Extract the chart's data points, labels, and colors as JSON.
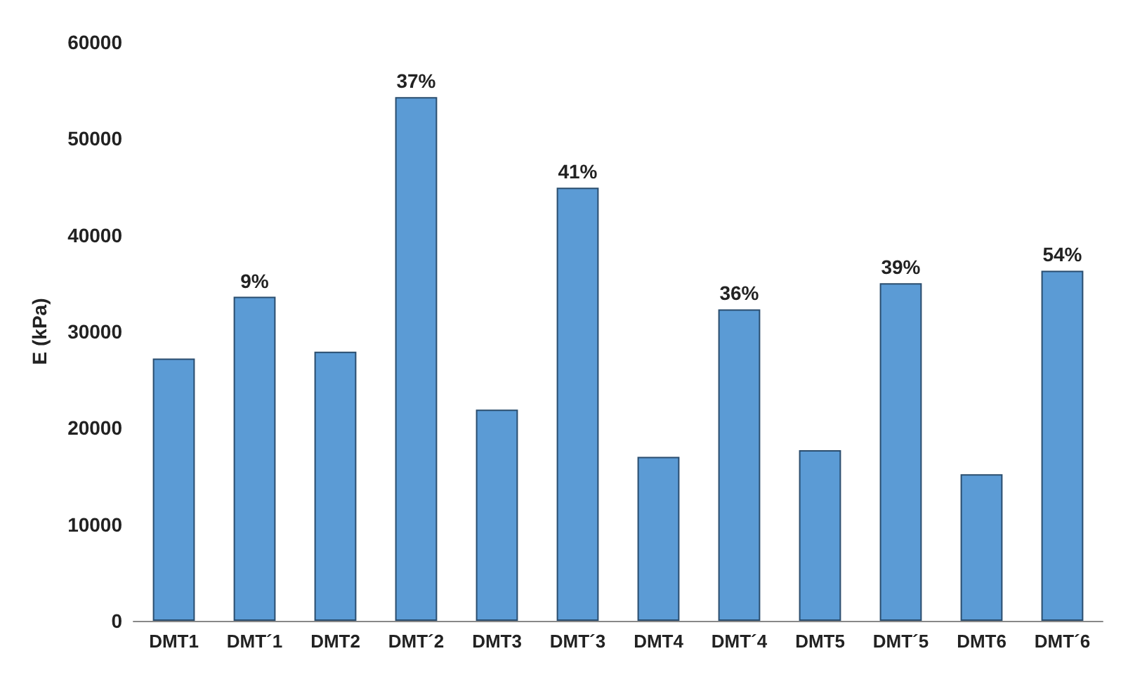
{
  "chart_data": {
    "type": "bar",
    "ylabel": "E (kPa)",
    "categories": [
      "DMT1",
      "DMT´1",
      "DMT2",
      "DMT´2",
      "DMT3",
      "DMT´3",
      "DMT4",
      "DMT´4",
      "DMT5",
      "DMT´5",
      "DMT6",
      "DMT´6"
    ],
    "values": [
      27200,
      33600,
      27900,
      54300,
      21900,
      44900,
      17000,
      32300,
      17700,
      35000,
      15200,
      36300
    ],
    "annotations": [
      {
        "text": "9%",
        "x": "DMT´1",
        "y": 33600
      },
      {
        "text": "37%",
        "x": "DMT´2",
        "y": 54300
      },
      {
        "text": "41%",
        "x": "DMT´3",
        "y": 44900
      },
      {
        "text": "36%",
        "x": "DMT´4",
        "y": 32300
      },
      {
        "text": "39%",
        "x": "DMT´5",
        "y": 35000
      },
      {
        "text": "54%",
        "x": "DMT´6",
        "y": 36300
      }
    ],
    "color": "#5b9bd5",
    "ylim": [
      0,
      60000
    ],
    "yticks": [
      0,
      10000,
      20000,
      30000,
      40000,
      50000,
      60000
    ],
    "grid": false
  }
}
